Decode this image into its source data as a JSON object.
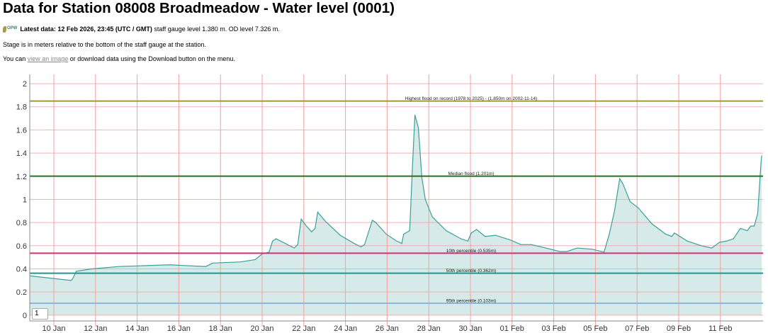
{
  "title": "Data for Station 08008 Broadmeadow - Water level (0001)",
  "latest": {
    "logo_text": "OPW",
    "bold": "Latest data: 12 Feb 2026, 23:45 (UTC / GMT)",
    "rest": " staff gauge level 1.380 m. OD level 7.326 m."
  },
  "stage_note": "Stage is in meters relative to the bottom of the staff gauge at the station.",
  "download_note": {
    "prefix": "You can ",
    "link": "view an image",
    "suffix": " or download data using the Download button on the menu."
  },
  "zoom_input_value": "1",
  "chart_data": {
    "type": "area",
    "title": "",
    "xlabel": "",
    "ylabel": "",
    "xlim": [
      "2026-01-08T20:00Z",
      "2026-01-13T00:00Z"
    ],
    "ylim": [
      -0.05,
      2.08
    ],
    "grid": true,
    "yticks": [
      0,
      0.2,
      0.4,
      0.6,
      0.8,
      1,
      1.2,
      1.4,
      1.6,
      1.8,
      2
    ],
    "ytick_labels": [
      "0",
      "0.2",
      "0.4",
      "0.6",
      "0.8",
      "1",
      "1.2",
      "1.4",
      "1.6",
      "1.8",
      "2"
    ],
    "xticks": [
      "2026-01-10",
      "2026-01-12",
      "2026-01-14",
      "2026-01-16",
      "2026-01-18",
      "2026-01-20",
      "2026-01-22",
      "2026-01-24",
      "2026-01-26",
      "2026-01-28",
      "2026-01-30",
      "2026-02-01",
      "2026-02-03",
      "2026-02-05",
      "2026-02-07",
      "2026-02-09",
      "2026-02-11"
    ],
    "xtick_labels": [
      "10 Jan",
      "12 Jan",
      "14 Jan",
      "16 Jan",
      "18 Jan",
      "20 Jan",
      "22 Jan",
      "24 Jan",
      "26 Jan",
      "28 Jan",
      "30 Jan",
      "01 Feb",
      "03 Feb",
      "05 Feb",
      "07 Feb",
      "09 Feb",
      "11 Feb"
    ],
    "colors": {
      "line": "#3a9e9a",
      "fill": "#d6ebe9",
      "grid": "#f2a0a0"
    },
    "thresholds": [
      {
        "label": "Highest flood on record (1978 to 2025) - (1.850m on 2002-11-14)",
        "value": 1.85,
        "color": "#a09a30"
      },
      {
        "label": "Median flood (1.201m)",
        "value": 1.201,
        "color": "#2e6b2e"
      },
      {
        "label": "10th percentile (0.535m)",
        "value": 0.535,
        "color": "#d0307a"
      },
      {
        "label": "50th percentile (0.362m)",
        "value": 0.362,
        "color": "#1a9a8a"
      },
      {
        "label": "95th percentile (0.103m)",
        "value": 0.103,
        "color": "#8ab8e0"
      }
    ],
    "series": [
      {
        "points": [
          [
            "2026-01-08T20:00Z",
            0.34
          ],
          [
            "2026-01-10T20:00Z",
            0.3
          ],
          [
            "2026-01-10T22:00Z",
            0.32
          ],
          [
            "2026-01-11T02:00Z",
            0.38
          ],
          [
            "2026-01-11T20:00Z",
            0.4
          ],
          [
            "2026-01-13T03:00Z",
            0.42
          ],
          [
            "2026-01-15T14:00Z",
            0.435
          ],
          [
            "2026-01-17T07:00Z",
            0.42
          ],
          [
            "2026-01-17T15:00Z",
            0.45
          ],
          [
            "2026-01-18T23:00Z",
            0.46
          ],
          [
            "2026-01-19T16:00Z",
            0.48
          ],
          [
            "2026-01-20T00:00Z",
            0.53
          ],
          [
            "2026-01-20T08:00Z",
            0.545
          ],
          [
            "2026-01-20T12:00Z",
            0.64
          ],
          [
            "2026-01-20T16:00Z",
            0.66
          ],
          [
            "2026-01-21T00:00Z",
            0.63
          ],
          [
            "2026-01-21T13:00Z",
            0.58
          ],
          [
            "2026-01-21T17:00Z",
            0.61
          ],
          [
            "2026-01-21T21:00Z",
            0.83
          ],
          [
            "2026-01-22T03:00Z",
            0.77
          ],
          [
            "2026-01-22T09:00Z",
            0.72
          ],
          [
            "2026-01-22T13:00Z",
            0.75
          ],
          [
            "2026-01-22T16:00Z",
            0.89
          ],
          [
            "2026-01-23T01:00Z",
            0.81
          ],
          [
            "2026-01-23T18:00Z",
            0.69
          ],
          [
            "2026-01-24T10:00Z",
            0.62
          ],
          [
            "2026-01-24T18:00Z",
            0.59
          ],
          [
            "2026-01-24T22:00Z",
            0.61
          ],
          [
            "2026-01-25T07:00Z",
            0.82
          ],
          [
            "2026-01-25T11:00Z",
            0.8
          ],
          [
            "2026-01-25T23:00Z",
            0.7
          ],
          [
            "2026-01-26T11:00Z",
            0.64
          ],
          [
            "2026-01-26T17:00Z",
            0.62
          ],
          [
            "2026-01-26T19:00Z",
            0.7
          ],
          [
            "2026-01-27T02:00Z",
            0.73
          ],
          [
            "2026-01-27T05:00Z",
            1.25
          ],
          [
            "2026-01-27T08:00Z",
            1.73
          ],
          [
            "2026-01-27T12:00Z",
            1.62
          ],
          [
            "2026-01-27T16:00Z",
            1.19
          ],
          [
            "2026-01-27T20:00Z",
            1.0
          ],
          [
            "2026-01-28T04:00Z",
            0.85
          ],
          [
            "2026-01-28T20:00Z",
            0.73
          ],
          [
            "2026-01-29T13:00Z",
            0.66
          ],
          [
            "2026-01-29T21:00Z",
            0.64
          ],
          [
            "2026-01-30T01:00Z",
            0.71
          ],
          [
            "2026-01-30T07:00Z",
            0.74
          ],
          [
            "2026-01-30T17:00Z",
            0.68
          ],
          [
            "2026-01-31T05:00Z",
            0.69
          ],
          [
            "2026-01-31T22:00Z",
            0.65
          ],
          [
            "2026-02-01T10:00Z",
            0.61
          ],
          [
            "2026-02-01T22:00Z",
            0.61
          ],
          [
            "2026-02-02T15:00Z",
            0.58
          ],
          [
            "2026-02-03T07:00Z",
            0.55
          ],
          [
            "2026-02-03T15:00Z",
            0.55
          ],
          [
            "2026-02-04T03:00Z",
            0.58
          ],
          [
            "2026-02-04T20:00Z",
            0.57
          ],
          [
            "2026-02-05T10:00Z",
            0.545
          ],
          [
            "2026-02-05T16:00Z",
            0.7
          ],
          [
            "2026-02-05T22:00Z",
            0.9
          ],
          [
            "2026-02-06T04:00Z",
            1.18
          ],
          [
            "2026-02-06T08:00Z",
            1.13
          ],
          [
            "2026-02-06T16:00Z",
            0.98
          ],
          [
            "2026-02-07T01:00Z",
            0.93
          ],
          [
            "2026-02-07T17:00Z",
            0.79
          ],
          [
            "2026-02-08T09:00Z",
            0.7
          ],
          [
            "2026-02-08T16:00Z",
            0.68
          ],
          [
            "2026-02-08T19:00Z",
            0.71
          ],
          [
            "2026-02-09T10:00Z",
            0.64
          ],
          [
            "2026-02-10T02:00Z",
            0.6
          ],
          [
            "2026-02-10T14:00Z",
            0.58
          ],
          [
            "2026-02-10T23:00Z",
            0.63
          ],
          [
            "2026-02-11T07:00Z",
            0.64
          ],
          [
            "2026-02-11T15:00Z",
            0.66
          ],
          [
            "2026-02-11T23:00Z",
            0.75
          ],
          [
            "2026-02-12T07:00Z",
            0.73
          ],
          [
            "2026-02-12T11:00Z",
            0.77
          ],
          [
            "2026-02-12T15:00Z",
            0.77
          ],
          [
            "2026-02-12T19:00Z",
            0.88
          ],
          [
            "2026-02-12T23:00Z",
            1.34
          ],
          [
            "2026-02-12T23:45Z",
            1.38
          ]
        ]
      }
    ]
  }
}
